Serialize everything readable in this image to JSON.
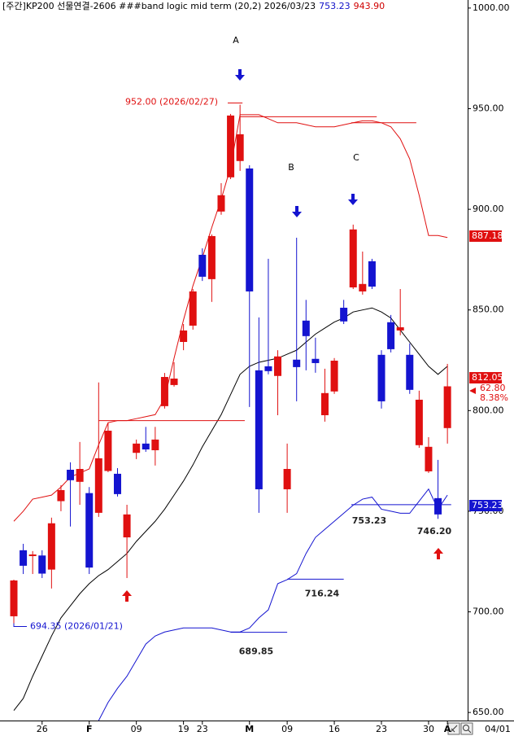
{
  "chart_data": {
    "type": "candlestick",
    "title": "[주간]KP200 선물연결-2606 ###band logic mid term  (20,2) 2026/03/23",
    "title_values": [
      {
        "text": "753.23",
        "color": "#1010c8"
      },
      {
        "text": "943.90",
        "color": "#d00000"
      }
    ],
    "categories": [
      null,
      null,
      null,
      "26",
      null,
      null,
      null,
      null,
      "F",
      null,
      null,
      null,
      null,
      "09",
      null,
      null,
      null,
      null,
      "19",
      null,
      "23",
      null,
      null,
      null,
      null,
      "M",
      null,
      null,
      null,
      "09",
      null,
      null,
      null,
      null,
      "16",
      null,
      null,
      null,
      null,
      "23",
      null,
      null,
      null,
      null,
      "30",
      null,
      "A"
    ],
    "open": [
      697.8,
      730.6,
      727.7,
      728,
      721,
      755,
      770.6,
      764.6,
      759,
      749.2,
      770,
      768.6,
      737,
      779,
      783.6,
      780.3,
      802.2,
      812.7,
      834.1,
      842.2,
      877.4,
      865.3,
      898.9,
      915.9,
      924,
      920.3,
      820,
      822,
      817.2,
      760.9,
      825.3,
      844.7,
      825.7,
      797.7,
      809.5,
      851.1,
      861.2,
      859.2,
      874.2,
      827.7,
      843.9,
      839.8,
      827.7,
      782.8,
      769.8,
      756.5,
      791.3
    ],
    "high": [
      716,
      733.8,
      730.2,
      730.6,
      746.8,
      762.9,
      774.3,
      784.4,
      762,
      814,
      793.9,
      771.4,
      753.2,
      785.6,
      791.9,
      791.9,
      818.7,
      824,
      843,
      860.4,
      880.6,
      887.5,
      913,
      947.4,
      952,
      921.9,
      846.3,
      875.4,
      830,
      783.6,
      885.9,
      855,
      836.2,
      820.8,
      826.1,
      855,
      892.4,
      879,
      875.4,
      830,
      847.5,
      860.4,
      833.4,
      809.9,
      786.8,
      775.5,
      823.2
    ],
    "low": [
      694.35,
      718.8,
      718.8,
      716.8,
      711.6,
      750,
      742.4,
      753.2,
      718.8,
      747.2,
      769.4,
      757.3,
      716.8,
      775.9,
      779.5,
      772.7,
      801,
      811.9,
      830,
      840.2,
      864.4,
      854,
      897.3,
      915,
      919.1,
      801.8,
      749.2,
      818,
      797.7,
      749.2,
      804.6,
      820,
      818.8,
      794.5,
      808.3,
      843,
      860.4,
      857.6,
      860.4,
      801,
      828.9,
      837.4,
      808.3,
      781.5,
      769,
      746.2,
      783.6
    ],
    "close": [
      715.6,
      722.9,
      728.5,
      719,
      744,
      760.5,
      765.4,
      771,
      722,
      776.3,
      790,
      758.5,
      748.4,
      783.6,
      780.7,
      785.6,
      816.7,
      815.9,
      839.8,
      859.2,
      866.5,
      886.7,
      907,
      946.6,
      937.3,
      859.2,
      760.9,
      819.6,
      826.9,
      771,
      821.6,
      837,
      823.6,
      808.7,
      824.8,
      844.3,
      890,
      862.9,
      861.6,
      804.6,
      830.5,
      841.4,
      810.3,
      805.4,
      782,
      748.4,
      812.05
    ],
    "up_color": "#e01010",
    "down_color": "#1414d0",
    "lines": [
      {
        "color": "#e01010",
        "values": [
          745,
          750,
          756,
          757,
          758,
          762,
          767,
          769,
          771,
          783,
          794,
          795,
          795,
          796,
          797,
          798,
          806,
          826,
          845,
          862,
          876,
          891,
          905,
          921,
          947,
          947,
          947,
          945,
          943,
          943,
          943,
          942,
          941,
          941,
          941,
          942,
          943,
          944,
          944,
          943,
          941,
          935,
          925,
          907,
          887,
          887,
          886
        ]
      },
      {
        "color": "#000000",
        "values": [
          651,
          657,
          668,
          678,
          688,
          697,
          703,
          709,
          714,
          718,
          721,
          725,
          729,
          735,
          740,
          745,
          751,
          758,
          765,
          773,
          782,
          790,
          798,
          808,
          818,
          822,
          824,
          825,
          826,
          828,
          830,
          834,
          838,
          841,
          844,
          846,
          849,
          850,
          851,
          849,
          846,
          840,
          834,
          828,
          822,
          818,
          822
        ]
      },
      {
        "color": "#1414d0",
        "values": [
          null,
          null,
          null,
          null,
          null,
          null,
          null,
          null,
          null,
          646,
          655,
          662,
          668,
          676,
          684,
          688,
          690,
          691,
          692,
          692,
          692,
          692,
          691,
          690,
          690,
          692,
          697,
          701,
          714,
          716,
          719,
          729,
          737,
          741,
          745,
          749,
          753,
          756,
          757,
          751,
          750,
          749,
          749,
          755,
          761,
          751,
          758
        ]
      }
    ],
    "levels": [
      {
        "value": 689.85,
        "color": "#1414d0",
        "labeled": true
      },
      {
        "value": 716.24,
        "color": "#1414d0",
        "labeled": true
      },
      {
        "value": 753.23,
        "color": "#1414d0",
        "labeled": true
      },
      {
        "value": 946,
        "color": "#e01010",
        "labeled": false
      },
      {
        "value": 943,
        "color": "#e01010",
        "labeled": false
      },
      {
        "value": 795,
        "color": "#e01010",
        "labeled": false
      }
    ],
    "low_point_label": "746.20",
    "high_note": "952.00 (2026/02/27)",
    "low_note": "694.35 (2026/01/21)",
    "markers": [
      "A",
      "B",
      "C"
    ],
    "price_tags": [
      {
        "text": "887.18",
        "color": "#e01010",
        "boxed": true
      },
      {
        "text": "812.05",
        "color": "#e01010",
        "boxed": true
      },
      {
        "text": "62.80",
        "color": "#e01010",
        "boxed": false
      },
      {
        "text": "8.38%",
        "color": "#e01010",
        "boxed": false
      },
      {
        "text": "753.23",
        "color": "#1414d0",
        "boxed": true
      }
    ],
    "ylim": [
      646,
      1004
    ],
    "yticks": [
      {
        "value": 1000,
        "label": "1000.00"
      },
      {
        "value": 950,
        "label": "950.00"
      },
      {
        "value": 900,
        "label": "900.00"
      },
      {
        "value": 850,
        "label": "850.00"
      },
      {
        "value": 800,
        "label": "800.00"
      },
      {
        "value": 750,
        "label": "750.00"
      },
      {
        "value": 700,
        "label": "700.00"
      },
      {
        "value": 650,
        "label": "650.00"
      }
    ],
    "date_box": "04/01"
  }
}
